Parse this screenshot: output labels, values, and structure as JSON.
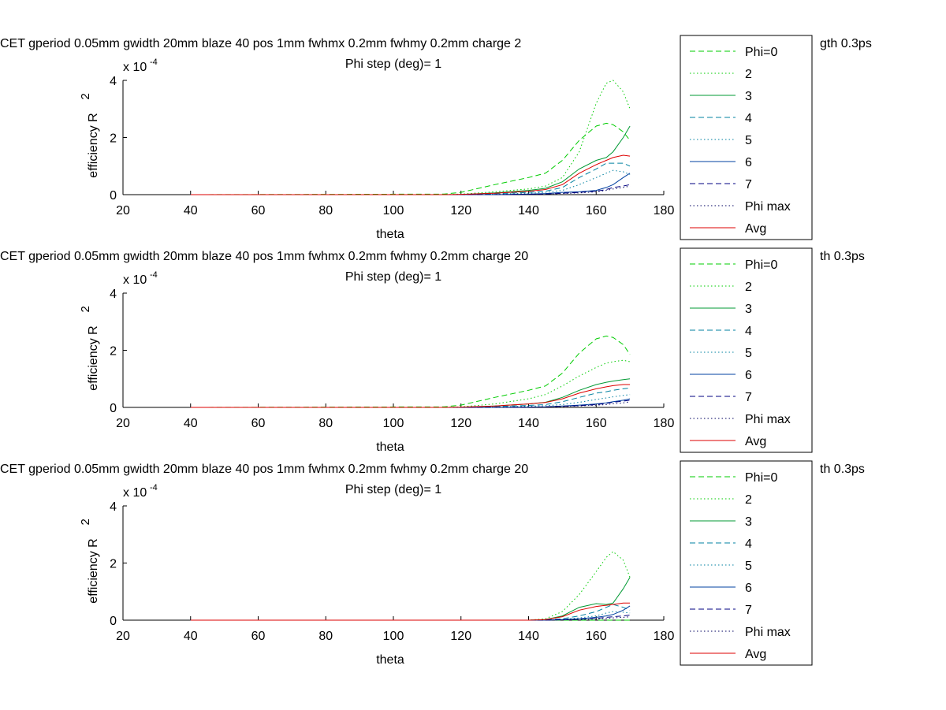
{
  "figure": {
    "background": "#ffffff"
  },
  "chart_data": [
    {
      "type": "line",
      "title_line1": "CET gperiod 0.05mm gwidth 20mm blaze 40 pos 1mm fwhmx 0.2mm fwhmy 0.2mm charge 2",
      "title_line1_tail": "gth 0.3ps",
      "title_line2": "Phi step (deg)= 1",
      "xlabel": "theta",
      "ylabel": "efficiency R",
      "ylabel_sup": "2",
      "exponent_base": "x 10",
      "exponent_power": "-4",
      "xlim": [
        20,
        180
      ],
      "ylim": [
        0,
        4
      ],
      "xticks": [
        "20",
        "40",
        "60",
        "80",
        "100",
        "120",
        "140",
        "160",
        "180"
      ],
      "yticks": [
        "0",
        "2",
        "4"
      ],
      "legend_position": "right",
      "x": [
        40,
        115,
        120,
        130,
        140,
        145,
        150,
        155,
        160,
        163,
        165,
        168,
        170
      ],
      "series": [
        {
          "name": "Phi=0",
          "color": "#00cc00",
          "dash": "dashed",
          "values": [
            0,
            0.02,
            0.08,
            0.35,
            0.6,
            0.75,
            1.2,
            1.9,
            2.4,
            2.5,
            2.45,
            2.2,
            1.9
          ]
        },
        {
          "name": "2",
          "color": "#00cc00",
          "dash": "dotted",
          "values": [
            0,
            0,
            0.02,
            0.1,
            0.2,
            0.3,
            0.6,
            1.5,
            3.2,
            3.9,
            4.0,
            3.6,
            3.0
          ]
        },
        {
          "name": "3",
          "color": "#009933",
          "dash": "solid",
          "values": [
            0,
            0,
            0,
            0.06,
            0.15,
            0.22,
            0.45,
            0.9,
            1.2,
            1.3,
            1.5,
            2.0,
            2.4
          ]
        },
        {
          "name": "4",
          "color": "#0080a0",
          "dash": "dashed",
          "values": [
            0,
            0,
            0,
            0.03,
            0.08,
            0.12,
            0.25,
            0.6,
            0.9,
            1.1,
            1.1,
            1.1,
            1.0
          ]
        },
        {
          "name": "5",
          "color": "#0080a0",
          "dash": "dotted",
          "values": [
            0,
            0,
            0,
            0.02,
            0.05,
            0.08,
            0.15,
            0.35,
            0.6,
            0.75,
            0.85,
            0.8,
            0.7
          ]
        },
        {
          "name": "6",
          "color": "#0040a0",
          "dash": "solid",
          "values": [
            0,
            0,
            0,
            0,
            0.02,
            0.04,
            0.08,
            0.1,
            0.15,
            0.25,
            0.35,
            0.6,
            0.75
          ]
        },
        {
          "name": "7",
          "color": "#000080",
          "dash": "dashed",
          "values": [
            0,
            0,
            0,
            0,
            0.01,
            0.02,
            0.05,
            0.08,
            0.12,
            0.18,
            0.25,
            0.3,
            0.35
          ]
        },
        {
          "name": "Phi max",
          "color": "#000060",
          "dash": "dotted",
          "values": [
            0,
            0,
            0,
            0,
            0.01,
            0.02,
            0.04,
            0.06,
            0.1,
            0.15,
            0.2,
            0.25,
            0.3
          ]
        },
        {
          "name": "Avg",
          "color": "#dd0000",
          "dash": "solid",
          "values": [
            0,
            0,
            0.01,
            0.05,
            0.12,
            0.18,
            0.35,
            0.75,
            1.05,
            1.2,
            1.3,
            1.38,
            1.35
          ]
        }
      ]
    },
    {
      "type": "line",
      "title_line1": "CET gperiod 0.05mm gwidth 20mm blaze 40 pos 1mm fwhmx 0.2mm fwhmy 0.2mm charge 20",
      "title_line1_tail": "th 0.3ps",
      "title_line2": "Phi step (deg)= 1",
      "xlabel": "theta",
      "ylabel": "efficiency R",
      "ylabel_sup": "2",
      "exponent_base": "x 10",
      "exponent_power": "-4",
      "xlim": [
        20,
        180
      ],
      "ylim": [
        0,
        4
      ],
      "xticks": [
        "20",
        "40",
        "60",
        "80",
        "100",
        "120",
        "140",
        "160",
        "180"
      ],
      "yticks": [
        "0",
        "2",
        "4"
      ],
      "legend_position": "right",
      "x": [
        40,
        115,
        120,
        130,
        140,
        145,
        150,
        155,
        160,
        163,
        165,
        168,
        170
      ],
      "series": [
        {
          "name": "Phi=0",
          "color": "#00cc00",
          "dash": "dashed",
          "values": [
            0,
            0.02,
            0.08,
            0.35,
            0.6,
            0.75,
            1.2,
            1.9,
            2.4,
            2.5,
            2.45,
            2.2,
            1.85
          ]
        },
        {
          "name": "2",
          "color": "#00cc00",
          "dash": "dotted",
          "values": [
            0,
            0,
            0.02,
            0.12,
            0.3,
            0.45,
            0.75,
            1.1,
            1.4,
            1.55,
            1.6,
            1.65,
            1.6
          ]
        },
        {
          "name": "3",
          "color": "#009933",
          "dash": "solid",
          "values": [
            0,
            0,
            0,
            0.05,
            0.12,
            0.18,
            0.35,
            0.6,
            0.8,
            0.88,
            0.92,
            0.97,
            1.0
          ]
        },
        {
          "name": "4",
          "color": "#0080a0",
          "dash": "dashed",
          "values": [
            0,
            0,
            0,
            0.03,
            0.07,
            0.1,
            0.2,
            0.35,
            0.5,
            0.55,
            0.6,
            0.65,
            0.68
          ]
        },
        {
          "name": "5",
          "color": "#0080a0",
          "dash": "dotted",
          "values": [
            0,
            0,
            0,
            0.02,
            0.04,
            0.06,
            0.1,
            0.18,
            0.28,
            0.33,
            0.37,
            0.42,
            0.45
          ]
        },
        {
          "name": "6",
          "color": "#0040a0",
          "dash": "solid",
          "values": [
            0,
            0,
            0,
            0,
            0.01,
            0.02,
            0.05,
            0.08,
            0.12,
            0.16,
            0.2,
            0.25,
            0.3
          ]
        },
        {
          "name": "7",
          "color": "#000080",
          "dash": "dashed",
          "values": [
            0,
            0,
            0,
            0,
            0.01,
            0.02,
            0.04,
            0.06,
            0.1,
            0.14,
            0.18,
            0.22,
            0.25
          ]
        },
        {
          "name": "Phi max",
          "color": "#000060",
          "dash": "dotted",
          "values": [
            0,
            0,
            0,
            0,
            0.01,
            0.01,
            0.03,
            0.05,
            0.08,
            0.1,
            0.13,
            0.16,
            0.2
          ]
        },
        {
          "name": "Avg",
          "color": "#dd0000",
          "dash": "solid",
          "values": [
            0,
            0,
            0.01,
            0.05,
            0.12,
            0.17,
            0.3,
            0.5,
            0.65,
            0.72,
            0.76,
            0.8,
            0.8
          ]
        }
      ]
    },
    {
      "type": "line",
      "title_line1": "CET gperiod 0.05mm gwidth 20mm blaze 40 pos 1mm fwhmx 0.2mm fwhmy 0.2mm charge 20",
      "title_line1_tail": "th 0.3ps",
      "title_line2": "Phi step (deg)= 1",
      "xlabel": "theta",
      "ylabel": "efficiency R",
      "ylabel_sup": "2",
      "exponent_base": "x 10",
      "exponent_power": "-4",
      "xlim": [
        20,
        180
      ],
      "ylim": [
        0,
        4
      ],
      "xticks": [
        "20",
        "40",
        "60",
        "80",
        "100",
        "120",
        "140",
        "160",
        "180"
      ],
      "yticks": [
        "0",
        "2",
        "4"
      ],
      "legend_position": "right",
      "x": [
        40,
        140,
        145,
        150,
        155,
        160,
        163,
        165,
        168,
        170
      ],
      "series": [
        {
          "name": "Phi=0",
          "color": "#00cc00",
          "dash": "dashed",
          "values": [
            0,
            0,
            0,
            0,
            0,
            0,
            0,
            0,
            0,
            0
          ]
        },
        {
          "name": "2",
          "color": "#00cc00",
          "dash": "dotted",
          "values": [
            0,
            0,
            0.05,
            0.3,
            0.9,
            1.7,
            2.2,
            2.4,
            2.1,
            1.5
          ]
        },
        {
          "name": "3",
          "color": "#009933",
          "dash": "solid",
          "values": [
            0,
            0,
            0.02,
            0.15,
            0.45,
            0.58,
            0.55,
            0.6,
            1.1,
            1.5
          ]
        },
        {
          "name": "4",
          "color": "#0080a0",
          "dash": "dashed",
          "values": [
            0,
            0,
            0.01,
            0.05,
            0.15,
            0.3,
            0.45,
            0.55,
            0.45,
            0.35
          ]
        },
        {
          "name": "5",
          "color": "#0080a0",
          "dash": "dotted",
          "values": [
            0,
            0,
            0,
            0.03,
            0.08,
            0.15,
            0.25,
            0.3,
            0.28,
            0.25
          ]
        },
        {
          "name": "6",
          "color": "#0040a0",
          "dash": "solid",
          "values": [
            0,
            0,
            0,
            0.02,
            0.05,
            0.1,
            0.15,
            0.2,
            0.35,
            0.5
          ]
        },
        {
          "name": "7",
          "color": "#000080",
          "dash": "dashed",
          "values": [
            0,
            0,
            0,
            0.01,
            0.03,
            0.06,
            0.1,
            0.12,
            0.15,
            0.18
          ]
        },
        {
          "name": "Phi max",
          "color": "#000060",
          "dash": "dotted",
          "values": [
            0,
            0,
            0,
            0.01,
            0.02,
            0.04,
            0.06,
            0.08,
            0.1,
            0.12
          ]
        },
        {
          "name": "Avg",
          "color": "#dd0000",
          "dash": "solid",
          "values": [
            0,
            0,
            0.02,
            0.12,
            0.35,
            0.48,
            0.52,
            0.55,
            0.6,
            0.6
          ]
        }
      ]
    }
  ]
}
